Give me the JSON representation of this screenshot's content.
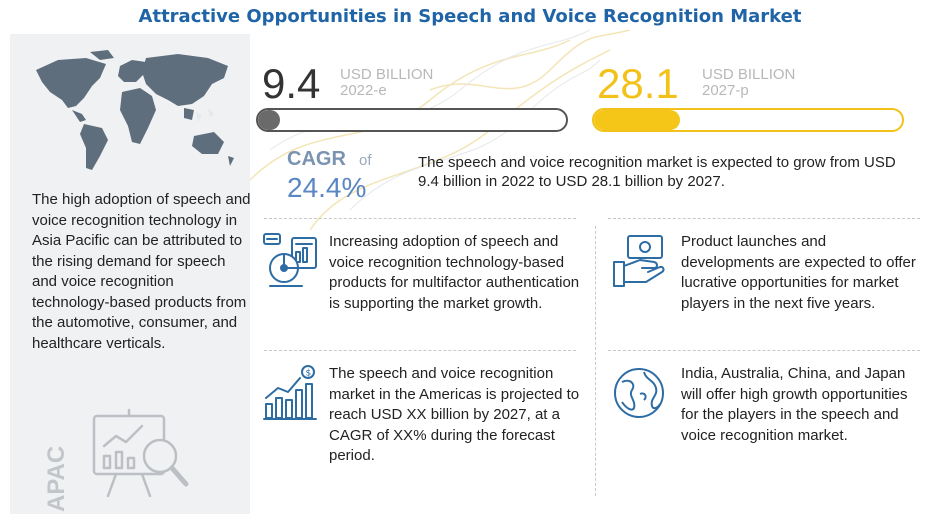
{
  "title": "Attractive Opportunities in Speech and Voice Recognition Market",
  "left_panel": {
    "description": "The high adoption of speech and voice recognition technology in Asia Pacific can be attributed to the rising demand for speech and voice recognition technology-based products from the automotive, consumer, and healthcare verticals.",
    "region_label": "APAC"
  },
  "metrics": {
    "start": {
      "value": "9.4",
      "unit": "USD BILLION",
      "year": "2022-e",
      "fill_fraction": 0.07
    },
    "end": {
      "value": "28.1",
      "unit": "USD BILLION",
      "year": "2027-p",
      "fill_fraction": 0.28
    },
    "cagr_label": "CAGR",
    "cagr_of": "of",
    "cagr_value": "24.4%",
    "summary": "The speech and voice recognition market is expected to grow from USD 9.4 billion in 2022 to USD 28.1 billion by 2027."
  },
  "insights": [
    {
      "icon": "authentication-chart-icon",
      "text": "Increasing adoption of speech and voice recognition technology-based products for multifactor authentication is supporting the market growth."
    },
    {
      "icon": "product-launch-icon",
      "text": "Product launches and developments are expected to offer lucrative opportunities for market players in the next five years."
    },
    {
      "icon": "growth-bar-chart-icon",
      "text": "The speech and voice recognition market in the Americas is projected to reach USD XX billion by 2027, at a CAGR of XX% during the forecast period."
    },
    {
      "icon": "globe-icon",
      "text": "India, Australia, China, and Japan will offer high growth opportunities for the players in the speech and voice recognition market."
    }
  ],
  "colors": {
    "title": "#1f64a6",
    "accent_yellow": "#f5c518",
    "bar_gray": "#6a6a6a",
    "cagr_blue": "#5a86c4",
    "icon_blue": "#2e6da4",
    "panel_bg": "#f0f1f3"
  }
}
